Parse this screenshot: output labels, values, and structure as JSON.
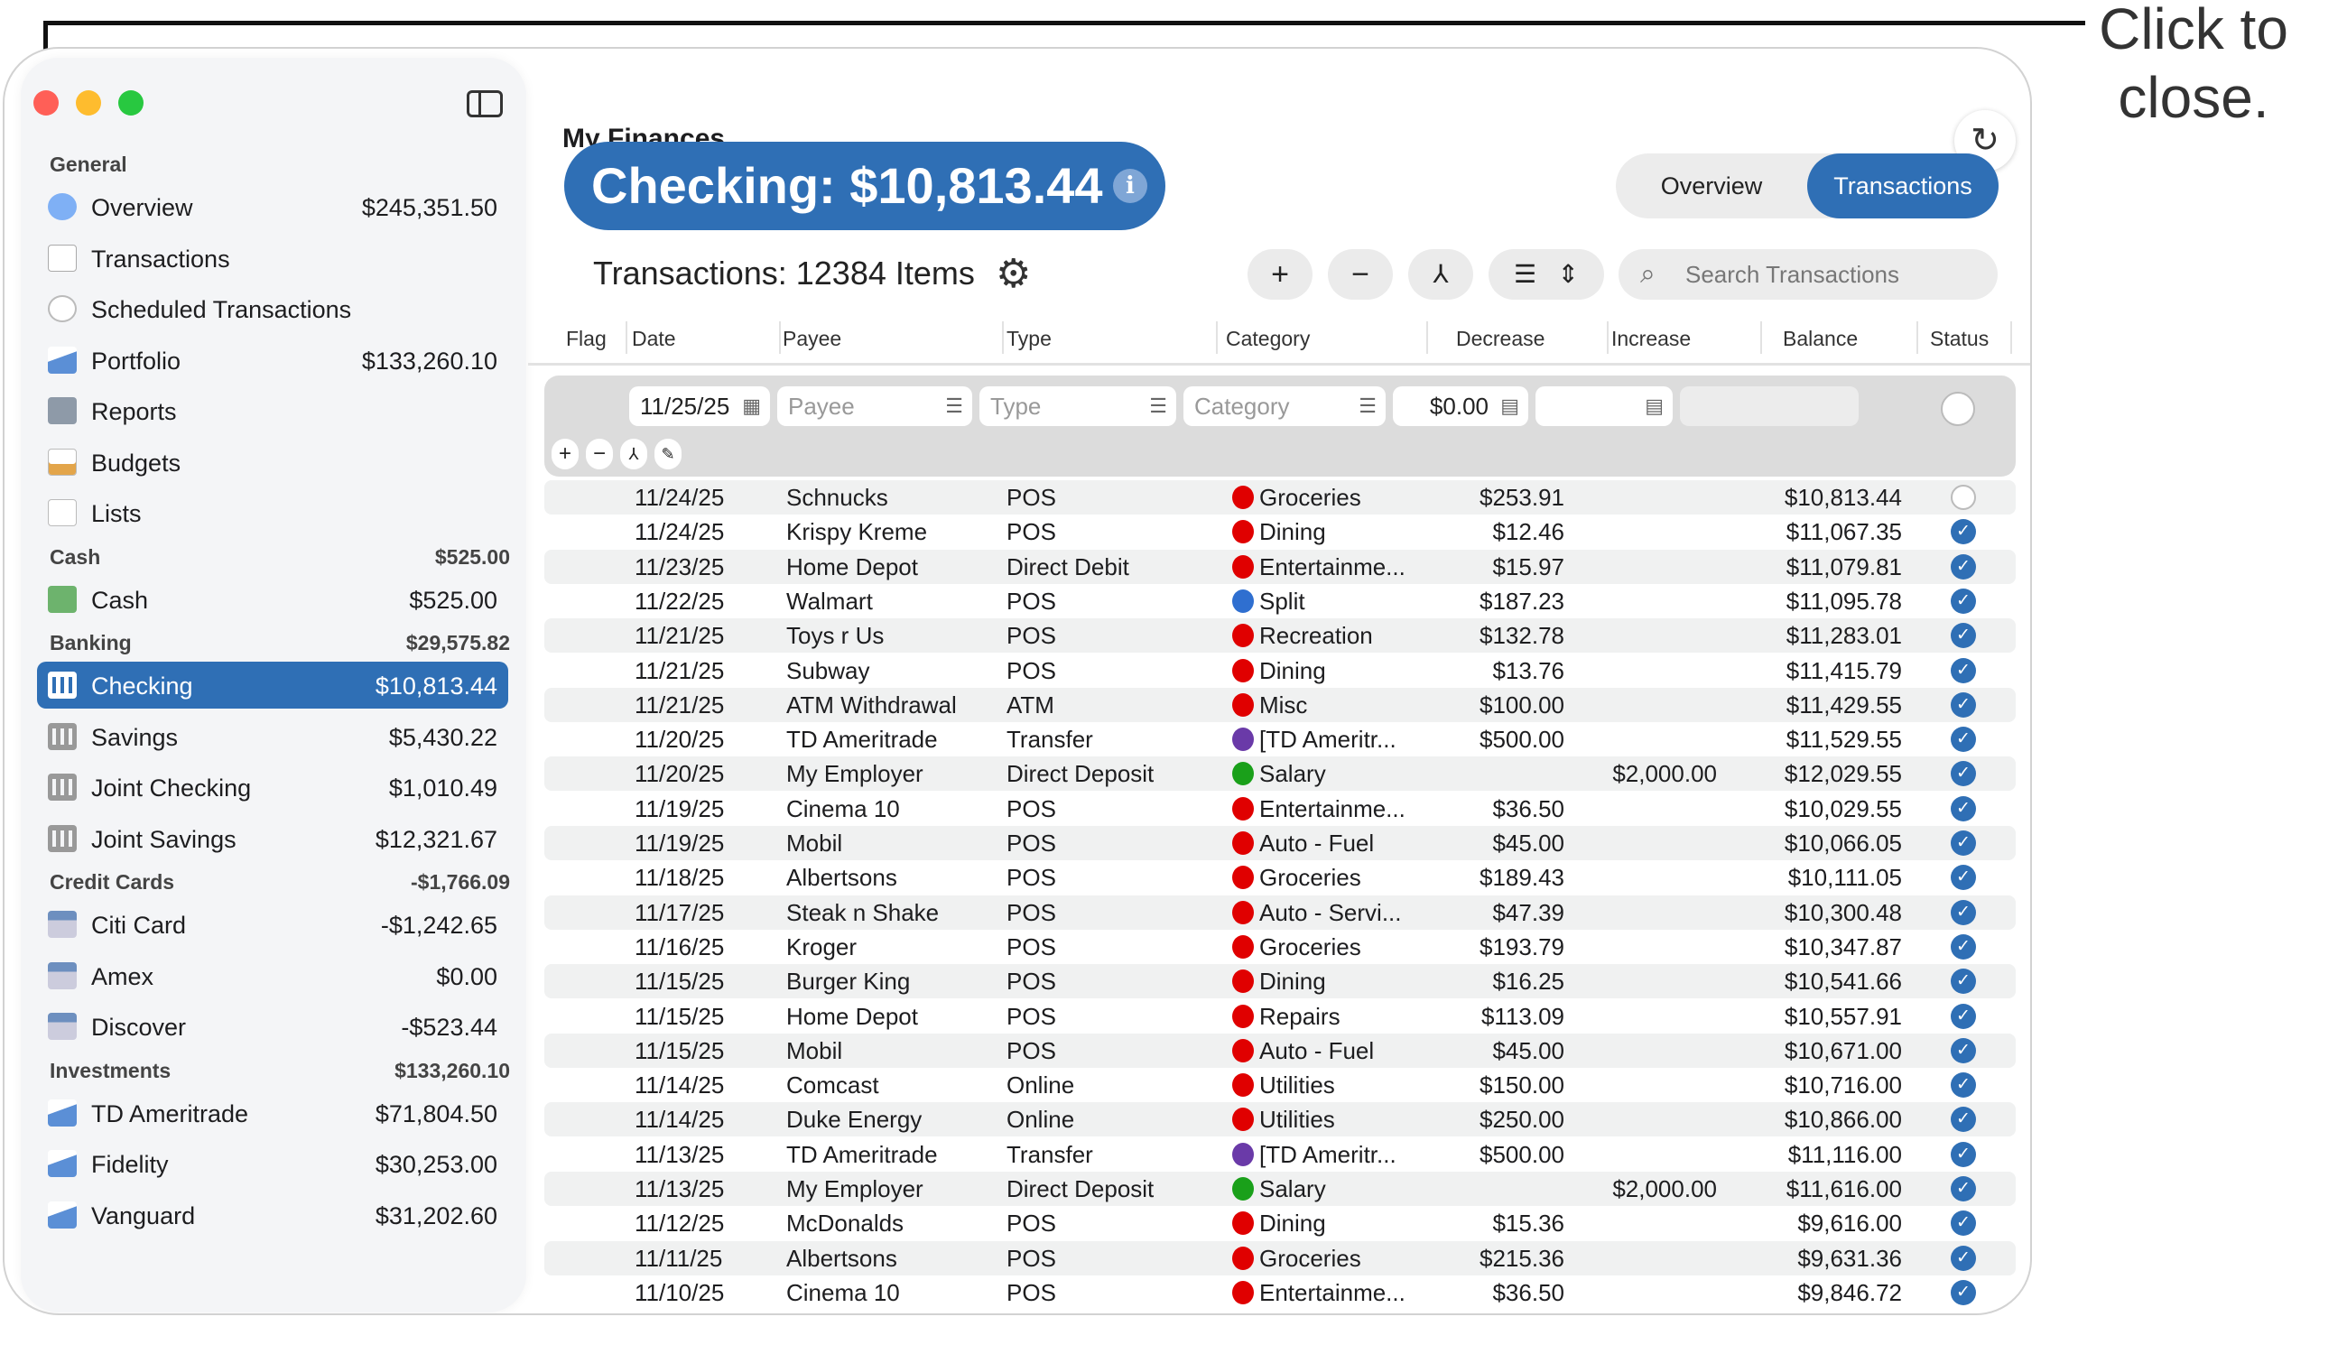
{
  "callout": {
    "text": "Click to close."
  },
  "window": {
    "title": "My Finances"
  },
  "colors": {
    "accent": "#2f6fb5",
    "red": "#ff5f57",
    "yellow": "#febc2e",
    "green": "#28c840"
  },
  "sidebar": {
    "sections": [
      {
        "header": "General",
        "amount": "",
        "items": [
          {
            "label": "Overview",
            "amount": "$245,351.50",
            "icon": "pie-chart-icon"
          },
          {
            "label": "Transactions",
            "amount": "",
            "icon": "receipt-icon"
          },
          {
            "label": "Scheduled Transactions",
            "amount": "",
            "icon": "clock-icon"
          },
          {
            "label": "Portfolio",
            "amount": "$133,260.10",
            "icon": "area-chart-icon"
          },
          {
            "label": "Reports",
            "amount": "",
            "icon": "calculator-icon"
          },
          {
            "label": "Budgets",
            "amount": "",
            "icon": "bar-chart-icon"
          },
          {
            "label": "Lists",
            "amount": "",
            "icon": "list-icon"
          }
        ]
      },
      {
        "header": "Cash",
        "amount": "$525.00",
        "items": [
          {
            "label": "Cash",
            "amount": "$525.00",
            "icon": "cash-icon"
          }
        ]
      },
      {
        "header": "Banking",
        "amount": "$29,575.82",
        "items": [
          {
            "label": "Checking",
            "amount": "$10,813.44",
            "icon": "bank-icon",
            "selected": true
          },
          {
            "label": "Savings",
            "amount": "$5,430.22",
            "icon": "bank-icon"
          },
          {
            "label": "Joint Checking",
            "amount": "$1,010.49",
            "icon": "bank-icon"
          },
          {
            "label": "Joint Savings",
            "amount": "$12,321.67",
            "icon": "bank-icon"
          }
        ]
      },
      {
        "header": "Credit Cards",
        "amount": "-$1,766.09",
        "items": [
          {
            "label": "Citi Card",
            "amount": "-$1,242.65",
            "icon": "credit-card-icon"
          },
          {
            "label": "Amex",
            "amount": "$0.00",
            "icon": "credit-card-icon"
          },
          {
            "label": "Discover",
            "amount": "-$523.44",
            "icon": "credit-card-icon"
          }
        ]
      },
      {
        "header": "Investments",
        "amount": "$133,260.10",
        "items": [
          {
            "label": "TD Ameritrade",
            "amount": "$71,804.50",
            "icon": "area-chart-icon"
          },
          {
            "label": "Fidelity",
            "amount": "$30,253.00",
            "icon": "area-chart-icon"
          },
          {
            "label": "Vanguard",
            "amount": "$31,202.60",
            "icon": "area-chart-icon"
          }
        ]
      }
    ]
  },
  "header": {
    "account_title": "Checking: $10,813.44",
    "count_label": "Transactions: 12384 Items"
  },
  "view_toggle": {
    "options": [
      "Overview",
      "Transactions"
    ],
    "selected": "Transactions"
  },
  "toolbar": {
    "add": "+",
    "remove": "−",
    "split": "⅄",
    "list": "☰",
    "sort": "⇕",
    "search_placeholder": "Search Transactions"
  },
  "columns": [
    "Flag",
    "Date",
    "Payee",
    "Type",
    "Category",
    "Decrease",
    "Increase",
    "Balance",
    "Status"
  ],
  "entry": {
    "date": "11/25/25",
    "payee_placeholder": "Payee",
    "type_placeholder": "Type",
    "category_placeholder": "Category",
    "decrease": "$0.00",
    "increase": ""
  },
  "category_colors": {
    "Groceries": "#e00000",
    "Dining": "#e00000",
    "Entertainme...": "#e00000",
    "Split": "#2f6fd0",
    "Recreation": "#e00000",
    "Misc": "#e00000",
    "[TD Ameritr...": "#6a3aa8",
    "Salary": "#1aa01a",
    "Auto - Fuel": "#e00000",
    "Auto - Servi...": "#e00000",
    "Repairs": "#e00000",
    "Utilities": "#e00000"
  },
  "transactions": [
    {
      "date": "11/24/25",
      "payee": "Schnucks",
      "type": "POS",
      "category": "Groceries",
      "decrease": "$253.91",
      "increase": "",
      "balance": "$10,813.44",
      "cleared": false
    },
    {
      "date": "11/24/25",
      "payee": "Krispy Kreme",
      "type": "POS",
      "category": "Dining",
      "decrease": "$12.46",
      "increase": "",
      "balance": "$11,067.35",
      "cleared": true
    },
    {
      "date": "11/23/25",
      "payee": "Home Depot",
      "type": "Direct Debit",
      "category": "Entertainme...",
      "decrease": "$15.97",
      "increase": "",
      "balance": "$11,079.81",
      "cleared": true
    },
    {
      "date": "11/22/25",
      "payee": "Walmart",
      "type": "POS",
      "category": "Split",
      "decrease": "$187.23",
      "increase": "",
      "balance": "$11,095.78",
      "cleared": true
    },
    {
      "date": "11/21/25",
      "payee": "Toys r Us",
      "type": "POS",
      "category": "Recreation",
      "decrease": "$132.78",
      "increase": "",
      "balance": "$11,283.01",
      "cleared": true
    },
    {
      "date": "11/21/25",
      "payee": "Subway",
      "type": "POS",
      "category": "Dining",
      "decrease": "$13.76",
      "increase": "",
      "balance": "$11,415.79",
      "cleared": true
    },
    {
      "date": "11/21/25",
      "payee": "ATM Withdrawal",
      "type": "ATM",
      "category": "Misc",
      "decrease": "$100.00",
      "increase": "",
      "balance": "$11,429.55",
      "cleared": true
    },
    {
      "date": "11/20/25",
      "payee": "TD Ameritrade",
      "type": "Transfer",
      "category": "[TD Ameritr...",
      "decrease": "$500.00",
      "increase": "",
      "balance": "$11,529.55",
      "cleared": true
    },
    {
      "date": "11/20/25",
      "payee": "My Employer",
      "type": "Direct Deposit",
      "category": "Salary",
      "decrease": "",
      "increase": "$2,000.00",
      "balance": "$12,029.55",
      "cleared": true
    },
    {
      "date": "11/19/25",
      "payee": "Cinema 10",
      "type": "POS",
      "category": "Entertainme...",
      "decrease": "$36.50",
      "increase": "",
      "balance": "$10,029.55",
      "cleared": true
    },
    {
      "date": "11/19/25",
      "payee": "Mobil",
      "type": "POS",
      "category": "Auto - Fuel",
      "decrease": "$45.00",
      "increase": "",
      "balance": "$10,066.05",
      "cleared": true
    },
    {
      "date": "11/18/25",
      "payee": "Albertsons",
      "type": "POS",
      "category": "Groceries",
      "decrease": "$189.43",
      "increase": "",
      "balance": "$10,111.05",
      "cleared": true
    },
    {
      "date": "11/17/25",
      "payee": "Steak n Shake",
      "type": "POS",
      "category": "Auto - Servi...",
      "decrease": "$47.39",
      "increase": "",
      "balance": "$10,300.48",
      "cleared": true
    },
    {
      "date": "11/16/25",
      "payee": "Kroger",
      "type": "POS",
      "category": "Groceries",
      "decrease": "$193.79",
      "increase": "",
      "balance": "$10,347.87",
      "cleared": true
    },
    {
      "date": "11/15/25",
      "payee": "Burger King",
      "type": "POS",
      "category": "Dining",
      "decrease": "$16.25",
      "increase": "",
      "balance": "$10,541.66",
      "cleared": true
    },
    {
      "date": "11/15/25",
      "payee": "Home Depot",
      "type": "POS",
      "category": "Repairs",
      "decrease": "$113.09",
      "increase": "",
      "balance": "$10,557.91",
      "cleared": true
    },
    {
      "date": "11/15/25",
      "payee": "Mobil",
      "type": "POS",
      "category": "Auto - Fuel",
      "decrease": "$45.00",
      "increase": "",
      "balance": "$10,671.00",
      "cleared": true
    },
    {
      "date": "11/14/25",
      "payee": "Comcast",
      "type": "Online",
      "category": "Utilities",
      "decrease": "$150.00",
      "increase": "",
      "balance": "$10,716.00",
      "cleared": true
    },
    {
      "date": "11/14/25",
      "payee": "Duke Energy",
      "type": "Online",
      "category": "Utilities",
      "decrease": "$250.00",
      "increase": "",
      "balance": "$10,866.00",
      "cleared": true
    },
    {
      "date": "11/13/25",
      "payee": "TD Ameritrade",
      "type": "Transfer",
      "category": "[TD Ameritr...",
      "decrease": "$500.00",
      "increase": "",
      "balance": "$11,116.00",
      "cleared": true
    },
    {
      "date": "11/13/25",
      "payee": "My Employer",
      "type": "Direct Deposit",
      "category": "Salary",
      "decrease": "",
      "increase": "$2,000.00",
      "balance": "$11,616.00",
      "cleared": true
    },
    {
      "date": "11/12/25",
      "payee": "McDonalds",
      "type": "POS",
      "category": "Dining",
      "decrease": "$15.36",
      "increase": "",
      "balance": "$9,616.00",
      "cleared": true
    },
    {
      "date": "11/11/25",
      "payee": "Albertsons",
      "type": "POS",
      "category": "Groceries",
      "decrease": "$215.36",
      "increase": "",
      "balance": "$9,631.36",
      "cleared": true
    },
    {
      "date": "11/10/25",
      "payee": "Cinema 10",
      "type": "POS",
      "category": "Entertainme...",
      "decrease": "$36.50",
      "increase": "",
      "balance": "$9,846.72",
      "cleared": true
    }
  ]
}
